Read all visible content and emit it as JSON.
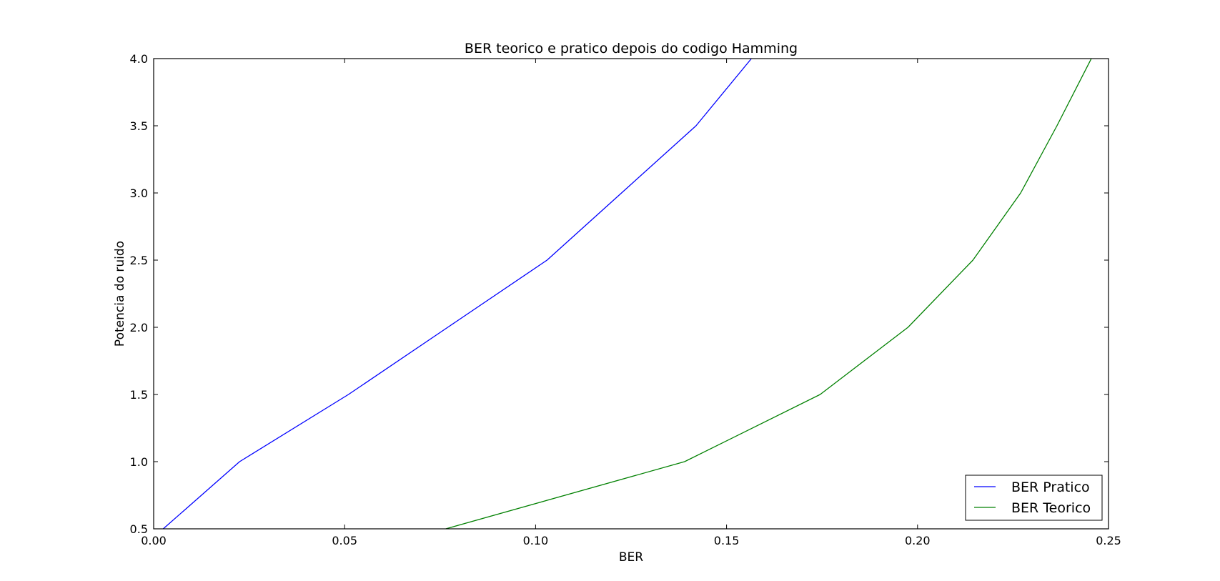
{
  "chart_data": {
    "type": "line",
    "title": "BER teorico e pratico depois do codigo Hamming",
    "xlabel": "BER",
    "ylabel": "Potencia do ruido",
    "xlim": [
      0.0,
      0.25
    ],
    "ylim": [
      0.5,
      4.0
    ],
    "xticks": [
      "0.00",
      "0.05",
      "0.10",
      "0.15",
      "0.20",
      "0.25"
    ],
    "yticks": [
      "0.5",
      "1.0",
      "1.5",
      "2.0",
      "2.5",
      "3.0",
      "3.5",
      "4.0"
    ],
    "grid": false,
    "legend_position": "lower-right",
    "series": [
      {
        "name": "BER Pratico",
        "color": "#0000ff",
        "points": [
          [
            0.0025,
            0.5
          ],
          [
            0.0225,
            1.0
          ],
          [
            0.051,
            1.5
          ],
          [
            0.077,
            2.0
          ],
          [
            0.103,
            2.5
          ],
          [
            0.1225,
            3.0
          ],
          [
            0.142,
            3.5
          ],
          [
            0.1565,
            4.0
          ]
        ]
      },
      {
        "name": "BER Teorico",
        "color": "#008000",
        "points": [
          [
            0.0765,
            0.5
          ],
          [
            0.139,
            1.0
          ],
          [
            0.1745,
            1.5
          ],
          [
            0.1975,
            2.0
          ],
          [
            0.2145,
            2.5
          ],
          [
            0.227,
            3.0
          ],
          [
            0.2365,
            3.5
          ],
          [
            0.2455,
            4.0
          ]
        ]
      }
    ]
  }
}
